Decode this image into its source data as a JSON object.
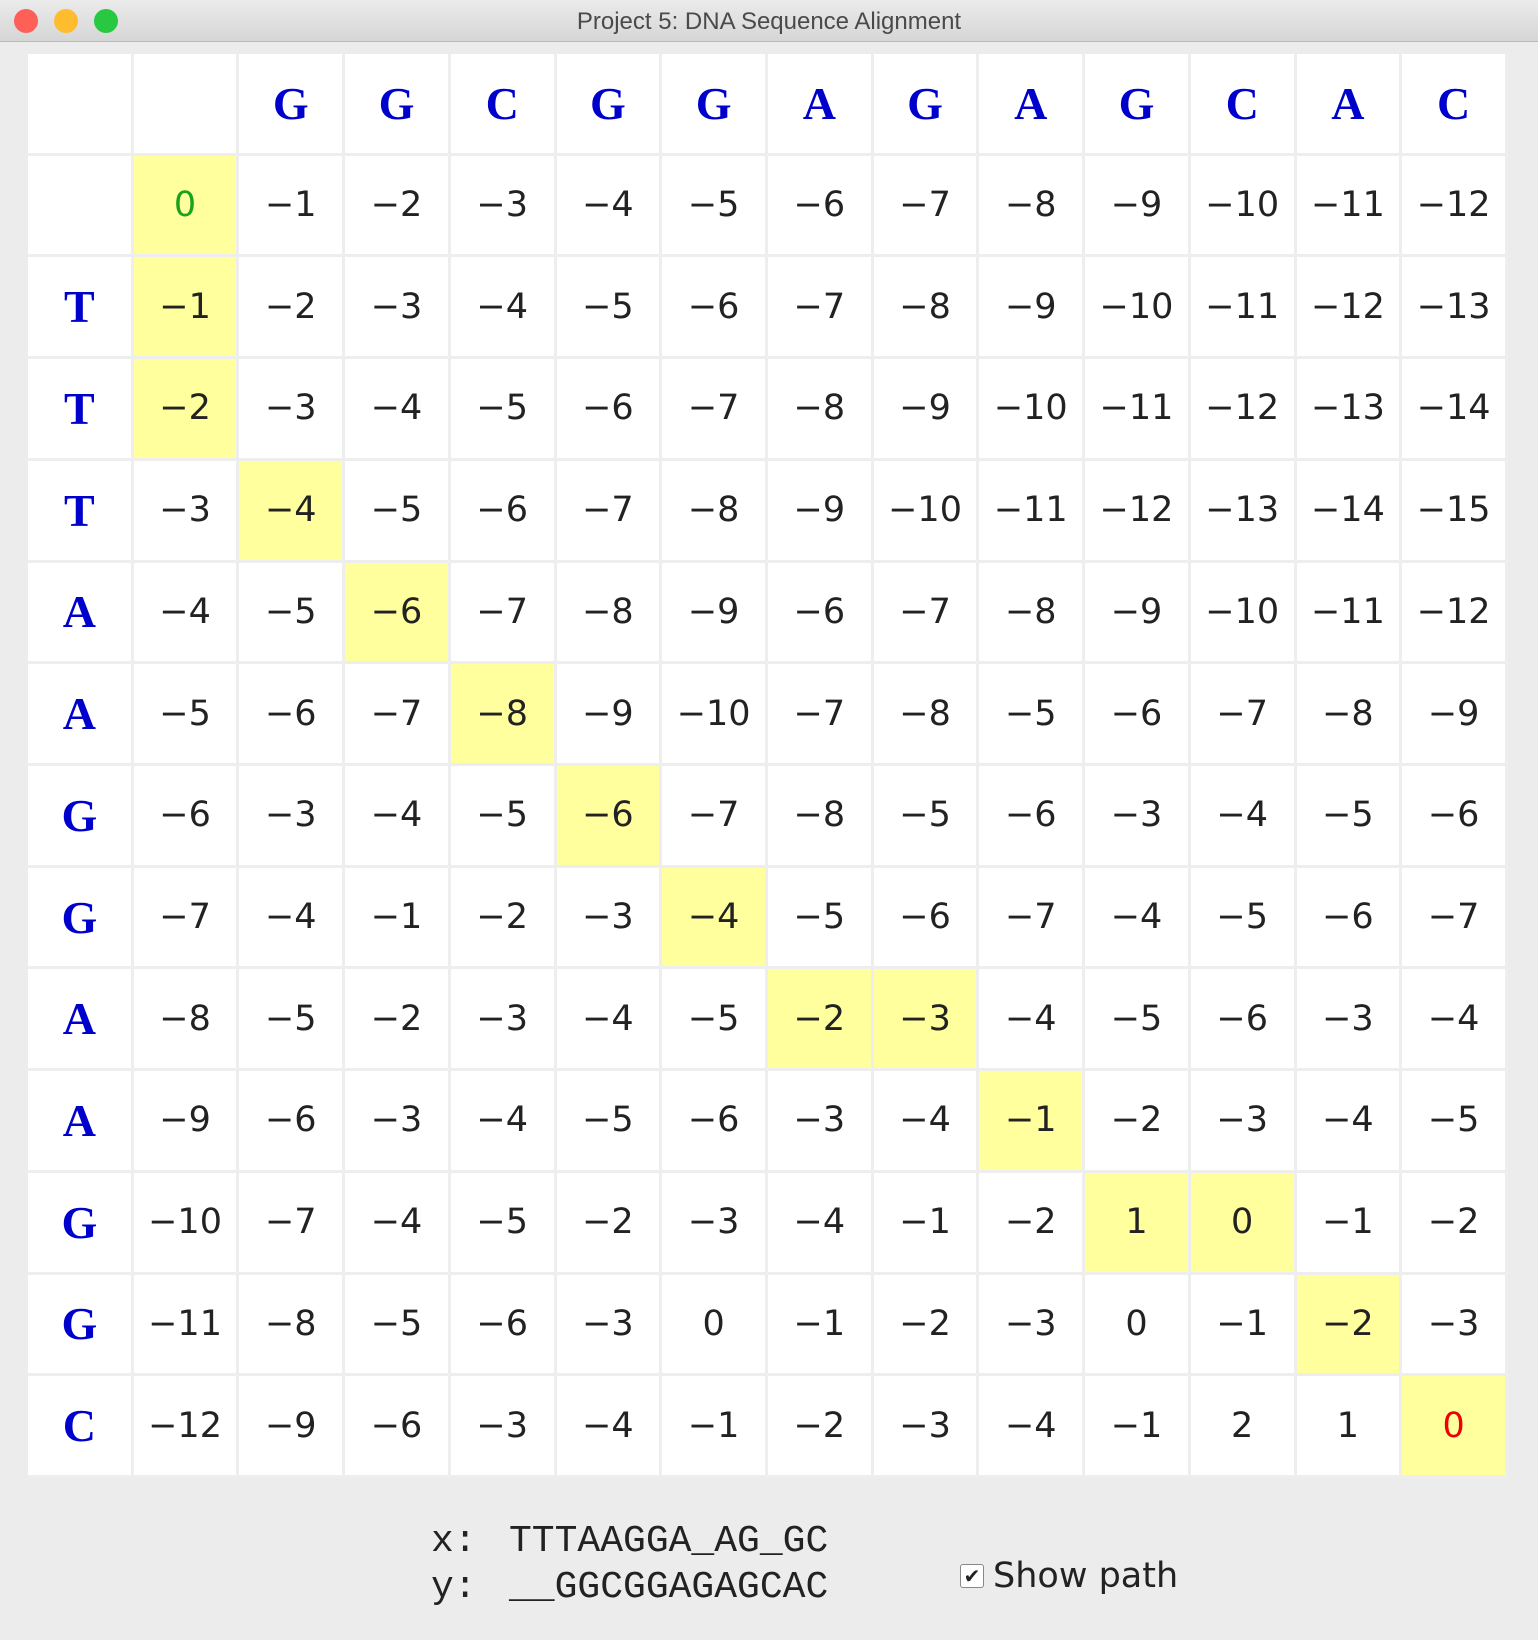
{
  "window": {
    "title": "Project 5: DNA Sequence Alignment"
  },
  "table": {
    "column_labels": [
      "G",
      "G",
      "C",
      "G",
      "G",
      "A",
      "G",
      "A",
      "G",
      "C",
      "A",
      "C"
    ],
    "row_labels": [
      "T",
      "T",
      "T",
      "A",
      "A",
      "G",
      "G",
      "A",
      "A",
      "G",
      "G",
      "C"
    ],
    "rows": [
      [
        "0",
        "−1",
        "−2",
        "−3",
        "−4",
        "−5",
        "−6",
        "−7",
        "−8",
        "−9",
        "−10",
        "−11",
        "−12"
      ],
      [
        "−1",
        "−2",
        "−3",
        "−4",
        "−5",
        "−6",
        "−7",
        "−8",
        "−9",
        "−10",
        "−11",
        "−12",
        "−13"
      ],
      [
        "−2",
        "−3",
        "−4",
        "−5",
        "−6",
        "−7",
        "−8",
        "−9",
        "−10",
        "−11",
        "−12",
        "−13",
        "−14"
      ],
      [
        "−3",
        "−4",
        "−5",
        "−6",
        "−7",
        "−8",
        "−9",
        "−10",
        "−11",
        "−12",
        "−13",
        "−14",
        "−15"
      ],
      [
        "−4",
        "−5",
        "−6",
        "−7",
        "−8",
        "−9",
        "−6",
        "−7",
        "−8",
        "−9",
        "−10",
        "−11",
        "−12"
      ],
      [
        "−5",
        "−6",
        "−7",
        "−8",
        "−9",
        "−10",
        "−7",
        "−8",
        "−5",
        "−6",
        "−7",
        "−8",
        "−9"
      ],
      [
        "−6",
        "−3",
        "−4",
        "−5",
        "−6",
        "−7",
        "−8",
        "−5",
        "−6",
        "−3",
        "−4",
        "−5",
        "−6"
      ],
      [
        "−7",
        "−4",
        "−1",
        "−2",
        "−3",
        "−4",
        "−5",
        "−6",
        "−7",
        "−4",
        "−5",
        "−6",
        "−7"
      ],
      [
        "−8",
        "−5",
        "−2",
        "−3",
        "−4",
        "−5",
        "−2",
        "−3",
        "−4",
        "−5",
        "−6",
        "−3",
        "−4"
      ],
      [
        "−9",
        "−6",
        "−3",
        "−4",
        "−5",
        "−6",
        "−3",
        "−4",
        "−1",
        "−2",
        "−3",
        "−4",
        "−5"
      ],
      [
        "−10",
        "−7",
        "−4",
        "−5",
        "−2",
        "−3",
        "−4",
        "−1",
        "−2",
        "1",
        "0",
        "−1",
        "−2"
      ],
      [
        "−11",
        "−8",
        "−5",
        "−6",
        "−3",
        "0",
        "−1",
        "−2",
        "−3",
        "0",
        "−1",
        "−2",
        "−3"
      ],
      [
        "−12",
        "−9",
        "−6",
        "−3",
        "−4",
        "−1",
        "−2",
        "−3",
        "−4",
        "−1",
        "2",
        "1",
        "0"
      ]
    ],
    "path": [
      [
        0,
        0
      ],
      [
        1,
        0
      ],
      [
        2,
        0
      ],
      [
        3,
        1
      ],
      [
        4,
        2
      ],
      [
        5,
        3
      ],
      [
        6,
        4
      ],
      [
        7,
        5
      ],
      [
        8,
        6
      ],
      [
        8,
        7
      ],
      [
        9,
        8
      ],
      [
        10,
        9
      ],
      [
        10,
        10
      ],
      [
        11,
        11
      ],
      [
        12,
        12
      ]
    ],
    "path_color": "#ffff9e",
    "start_color": "#1aa31a",
    "end_color": "#ee0000",
    "label_color": "#0000cc"
  },
  "alignment": {
    "x_label": "x:",
    "x": "TTTAAGGA_AG_GC",
    "y_label": "y:",
    "y": "__GGCGGAGAGCAC"
  },
  "controls": {
    "show_path_label": "Show path",
    "show_path": true
  }
}
